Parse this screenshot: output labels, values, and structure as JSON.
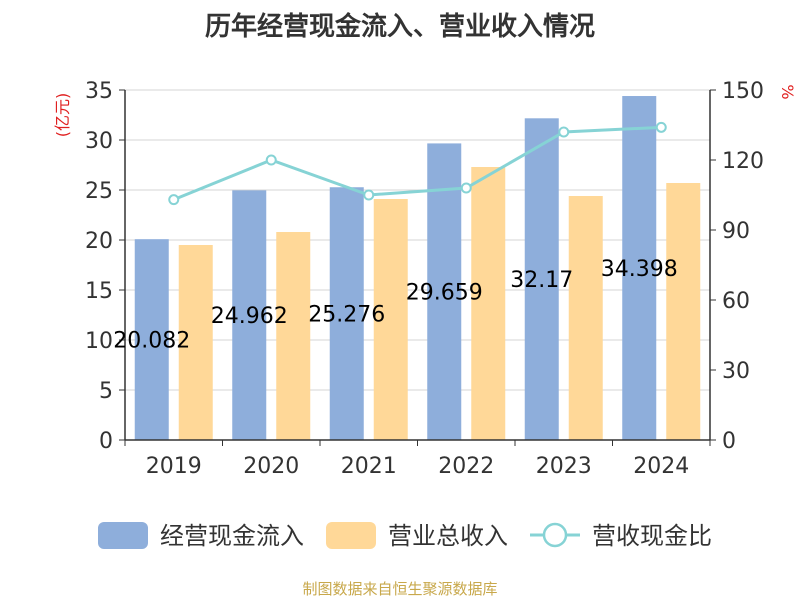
{
  "chart_data": {
    "type": "bar",
    "title": "历年经营现金流入、营业收入情况",
    "categories": [
      "2019",
      "2020",
      "2021",
      "2022",
      "2023",
      "2024"
    ],
    "series": [
      {
        "name": "经营现金流入",
        "type": "bar",
        "axis": "left",
        "values": [
          20.082,
          24.962,
          25.276,
          29.659,
          32.17,
          34.398
        ],
        "labels": [
          "20.082",
          "24.962",
          "25.276",
          "29.659",
          "32.17",
          "34.398"
        ],
        "color": "#8eaedb"
      },
      {
        "name": "营业总收入",
        "type": "bar",
        "axis": "left",
        "values": [
          19.5,
          20.8,
          24.1,
          27.3,
          24.4,
          25.7
        ],
        "color": "#ffd898"
      },
      {
        "name": "营收现金比",
        "type": "line",
        "axis": "right",
        "values": [
          103,
          120,
          105,
          108,
          132,
          134
        ],
        "color": "#86d3d5"
      }
    ],
    "y_left": {
      "label": "(亿元)",
      "range": [
        0,
        35
      ],
      "ticks": [
        0,
        5,
        10,
        15,
        20,
        25,
        30,
        35
      ],
      "label_color": "#e02020"
    },
    "y_right": {
      "label": "%",
      "range": [
        0,
        150
      ],
      "ticks": [
        0,
        30,
        60,
        90,
        120,
        150
      ],
      "label_color": "#e02020"
    },
    "grid": true,
    "legend_position": "bottom"
  },
  "footer": "制图数据来自恒生聚源数据库"
}
